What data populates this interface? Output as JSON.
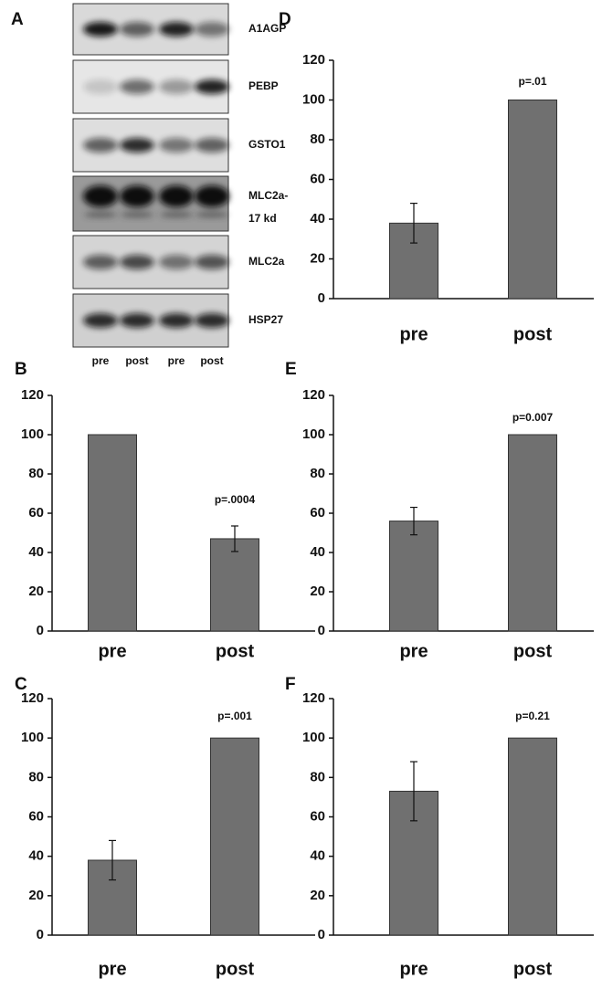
{
  "blot": {
    "panel": "A",
    "proteins": [
      "A1AGP",
      "PEBP",
      "GSTO1",
      "MLC2a-",
      "MLC2a",
      "HSP27"
    ],
    "protein_sublabel": "17 kd",
    "lanes": [
      "pre",
      "post",
      "pre",
      "post"
    ]
  },
  "chart_data": [
    {
      "type": "bar",
      "panel": "D",
      "categories": [
        "pre",
        "post"
      ],
      "values": [
        38,
        100
      ],
      "errors": [
        10,
        null
      ],
      "annotation": "p=.01",
      "color": "#707070",
      "ylim": [
        0,
        120
      ],
      "yticks": [
        0,
        20,
        40,
        60,
        80,
        100,
        120
      ]
    },
    {
      "type": "bar",
      "panel": "B",
      "categories": [
        "pre",
        "post"
      ],
      "values": [
        100,
        47
      ],
      "errors": [
        null,
        6.5
      ],
      "annotation": "p=.0004",
      "color": "#707070",
      "ylim": [
        0,
        120
      ],
      "yticks": [
        0,
        20,
        40,
        60,
        80,
        100,
        120
      ]
    },
    {
      "type": "bar",
      "panel": "E",
      "categories": [
        "pre",
        "post"
      ],
      "values": [
        56,
        100
      ],
      "errors": [
        7,
        null
      ],
      "annotation": "p=0.007",
      "color": "#707070",
      "ylim": [
        0,
        120
      ],
      "yticks": [
        0,
        20,
        40,
        60,
        80,
        100,
        120
      ]
    },
    {
      "type": "bar",
      "panel": "C",
      "categories": [
        "pre",
        "post"
      ],
      "values": [
        38,
        100
      ],
      "errors": [
        10,
        null
      ],
      "annotation": "p=.001",
      "color": "#707070",
      "ylim": [
        0,
        120
      ],
      "yticks": [
        0,
        20,
        40,
        60,
        80,
        100,
        120
      ]
    },
    {
      "type": "bar",
      "panel": "F",
      "categories": [
        "pre",
        "post"
      ],
      "values": [
        73,
        100
      ],
      "errors": [
        15,
        null
      ],
      "annotation": "p=0.21",
      "color": "#707070",
      "ylim": [
        0,
        120
      ],
      "yticks": [
        0,
        20,
        40,
        60,
        80,
        100,
        120
      ]
    }
  ]
}
